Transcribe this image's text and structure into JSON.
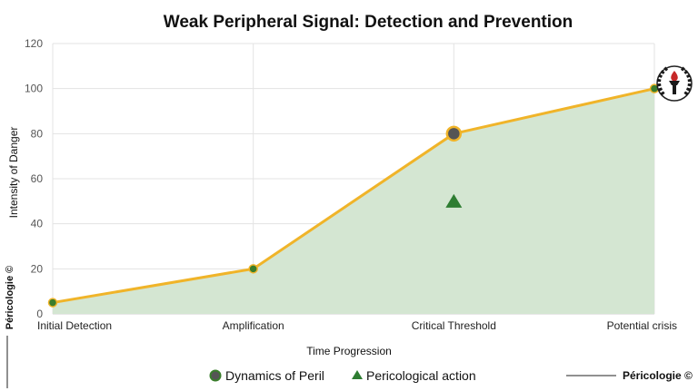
{
  "chart_data": {
    "type": "area",
    "title": "Weak Peripheral Signal: Detection and Prevention",
    "xlabel": "Time Progression",
    "ylabel": "Intensity of Danger",
    "categories": [
      "Initial Detection",
      "Amplification",
      "Critical Threshold",
      "Potential crisis"
    ],
    "ylim": [
      0,
      120
    ],
    "yticks": [
      0,
      20,
      40,
      60,
      80,
      100,
      120
    ],
    "grid": true,
    "series": [
      {
        "name": "Dynamics of Peril",
        "type": "area",
        "values": [
          5,
          20,
          80,
          100
        ],
        "line_color": "#f0b429",
        "fill_color": "#d4e6d2",
        "marker_color": "#3a7d2c"
      },
      {
        "name": "Pericological action",
        "type": "scatter",
        "marker": "triangle",
        "points": [
          {
            "category": "Critical Threshold",
            "value": 50
          }
        ],
        "color": "#2e7d32"
      }
    ],
    "legend_position": "bottom"
  },
  "credits": {
    "side": "Péricologie ©",
    "bottom_right": "Péricologie ©"
  },
  "colors": {
    "line": "#f0b429",
    "fill": "#d4e6d2",
    "highlight_point": "#555555",
    "triangle": "#2e7d32",
    "grid": "#e3e3e3"
  },
  "logo": "laurel-torch-emblem"
}
